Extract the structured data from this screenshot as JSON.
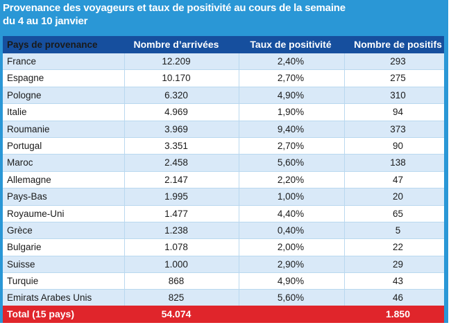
{
  "title": {
    "line1": "Provenance des voyageurs et taux de positivité au cours de la semaine",
    "line2": "du 4 au 10 janvier"
  },
  "chart_data": {
    "type": "table",
    "columns": [
      "Pays de provenance",
      "Nombre d’arrivées",
      "Taux de positivité",
      "Nombre de positifs"
    ],
    "rows": [
      [
        "France",
        "12.209",
        "2,40%",
        "293"
      ],
      [
        "Espagne",
        "10.170",
        "2,70%",
        "275"
      ],
      [
        "Pologne",
        "6.320",
        "4,90%",
        "310"
      ],
      [
        "Italie",
        "4.969",
        "1,90%",
        "94"
      ],
      [
        "Roumanie",
        "3.969",
        "9,40%",
        "373"
      ],
      [
        "Portugal",
        "3.351",
        "2,70%",
        "90"
      ],
      [
        "Maroc",
        "2.458",
        "5,60%",
        "138"
      ],
      [
        "Allemagne",
        "2.147",
        "2,20%",
        "47"
      ],
      [
        "Pays-Bas",
        "1.995",
        "1,00%",
        "20"
      ],
      [
        "Royaume-Uni",
        "1.477",
        "4,40%",
        "65"
      ],
      [
        "Grèce",
        "1.238",
        "0,40%",
        "5"
      ],
      [
        "Bulgarie",
        "1.078",
        "2,00%",
        "22"
      ],
      [
        "Suisse",
        "1.000",
        "2,90%",
        "29"
      ],
      [
        "Turquie",
        "868",
        "4,90%",
        "43"
      ],
      [
        "Emirats Arabes Unis",
        "825",
        "5,60%",
        "46"
      ]
    ],
    "total": [
      "Total (15 pays)",
      "54.074",
      "",
      "1.850"
    ]
  },
  "colors": {
    "frame": "#2a97d6",
    "header": "#164f9e",
    "row_alt": "#d9e9f8",
    "total": "#e0252b"
  }
}
